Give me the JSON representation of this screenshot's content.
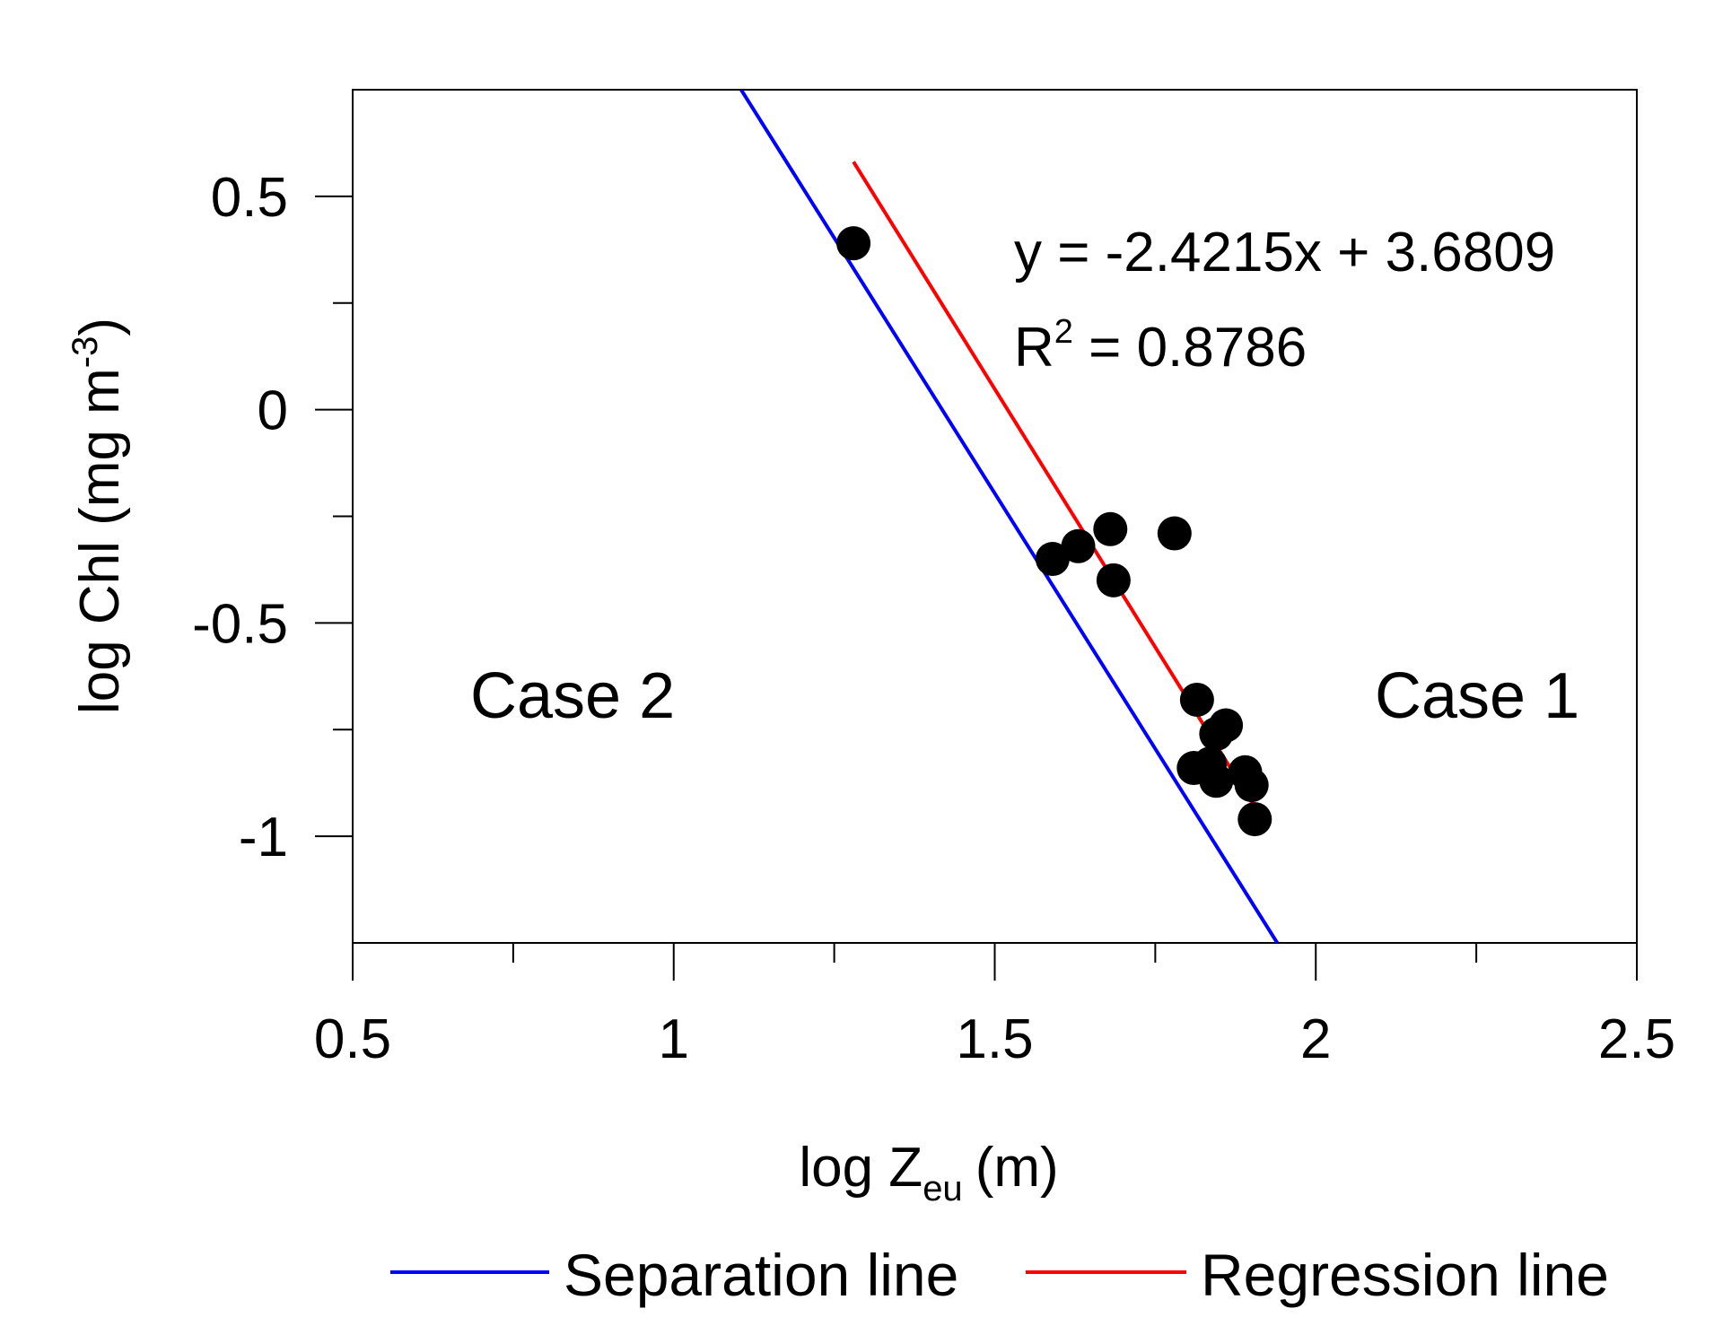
{
  "chart_data": {
    "type": "scatter",
    "title": "",
    "xlabel": {
      "main": "log Z",
      "sub": "eu",
      "unit": "(m)"
    },
    "ylabel": {
      "main": "log Chl (mg m",
      "sup": "-3",
      "end": ")"
    },
    "xlim": [
      0.5,
      2.5
    ],
    "ylim": [
      -1.25,
      0.75
    ],
    "x_ticks": [
      {
        "value": 0.5,
        "label": "0.5"
      },
      {
        "value": 1,
        "label": "1"
      },
      {
        "value": 1.5,
        "label": "1.5"
      },
      {
        "value": 2,
        "label": "2"
      },
      {
        "value": 2.5,
        "label": "2.5"
      }
    ],
    "x_minor_ticks": [
      0.75,
      1.25,
      1.75,
      2.25
    ],
    "y_ticks": [
      {
        "value": 0.5,
        "label": "0.5"
      },
      {
        "value": 0,
        "label": "0"
      },
      {
        "value": -0.5,
        "label": "-0.5"
      },
      {
        "value": -1,
        "label": "-1"
      }
    ],
    "y_minor_ticks": [
      0.25,
      -0.25,
      -0.75
    ],
    "points": [
      {
        "x": 1.28,
        "y": 0.39
      },
      {
        "x": 1.59,
        "y": -0.35
      },
      {
        "x": 1.63,
        "y": -0.32
      },
      {
        "x": 1.68,
        "y": -0.28
      },
      {
        "x": 1.685,
        "y": -0.4
      },
      {
        "x": 1.78,
        "y": -0.29
      },
      {
        "x": 1.815,
        "y": -0.68
      },
      {
        "x": 1.81,
        "y": -0.84
      },
      {
        "x": 1.835,
        "y": -0.83
      },
      {
        "x": 1.845,
        "y": -0.76
      },
      {
        "x": 1.86,
        "y": -0.74
      },
      {
        "x": 1.845,
        "y": -0.87
      },
      {
        "x": 1.89,
        "y": -0.85
      },
      {
        "x": 1.9,
        "y": -0.88
      },
      {
        "x": 1.905,
        "y": -0.96
      }
    ],
    "series": [
      {
        "name": "Separation line",
        "color": "#0000ff",
        "x": [
          1.105,
          1.94
        ],
        "y": [
          0.75,
          -1.25
        ]
      },
      {
        "name": "Regression line",
        "color": "#ff0000",
        "x": [
          1.28,
          1.905
        ],
        "y": [
          0.581,
          -0.932
        ]
      }
    ],
    "equation": {
      "line1": "y  =  -2.4215x  + 3.6809",
      "r_label": "R",
      "r_sup": "2",
      "r_value": " =  0.8786"
    },
    "annotations": [
      "Case 2",
      "Case 1"
    ],
    "legend": {
      "placement": "bottom",
      "entries": [
        {
          "label": "Separation line",
          "color": "#0000ff"
        },
        {
          "label": "Regression line",
          "color": "#ff0000"
        }
      ]
    },
    "grid": false
  }
}
